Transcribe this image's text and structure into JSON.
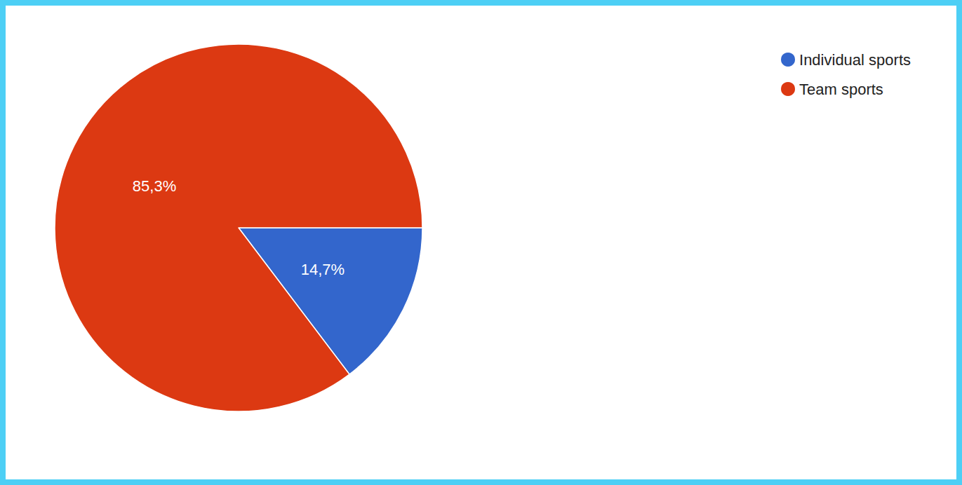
{
  "chart_data": {
    "type": "pie",
    "categories": [
      "Individual sports",
      "Team sports"
    ],
    "values": [
      14.7,
      85.3
    ],
    "value_labels": [
      "14,7%",
      "85,3%"
    ],
    "colors": [
      "#3366cc",
      "#dc3912"
    ],
    "legend": "top-right",
    "data_labels": true
  }
}
